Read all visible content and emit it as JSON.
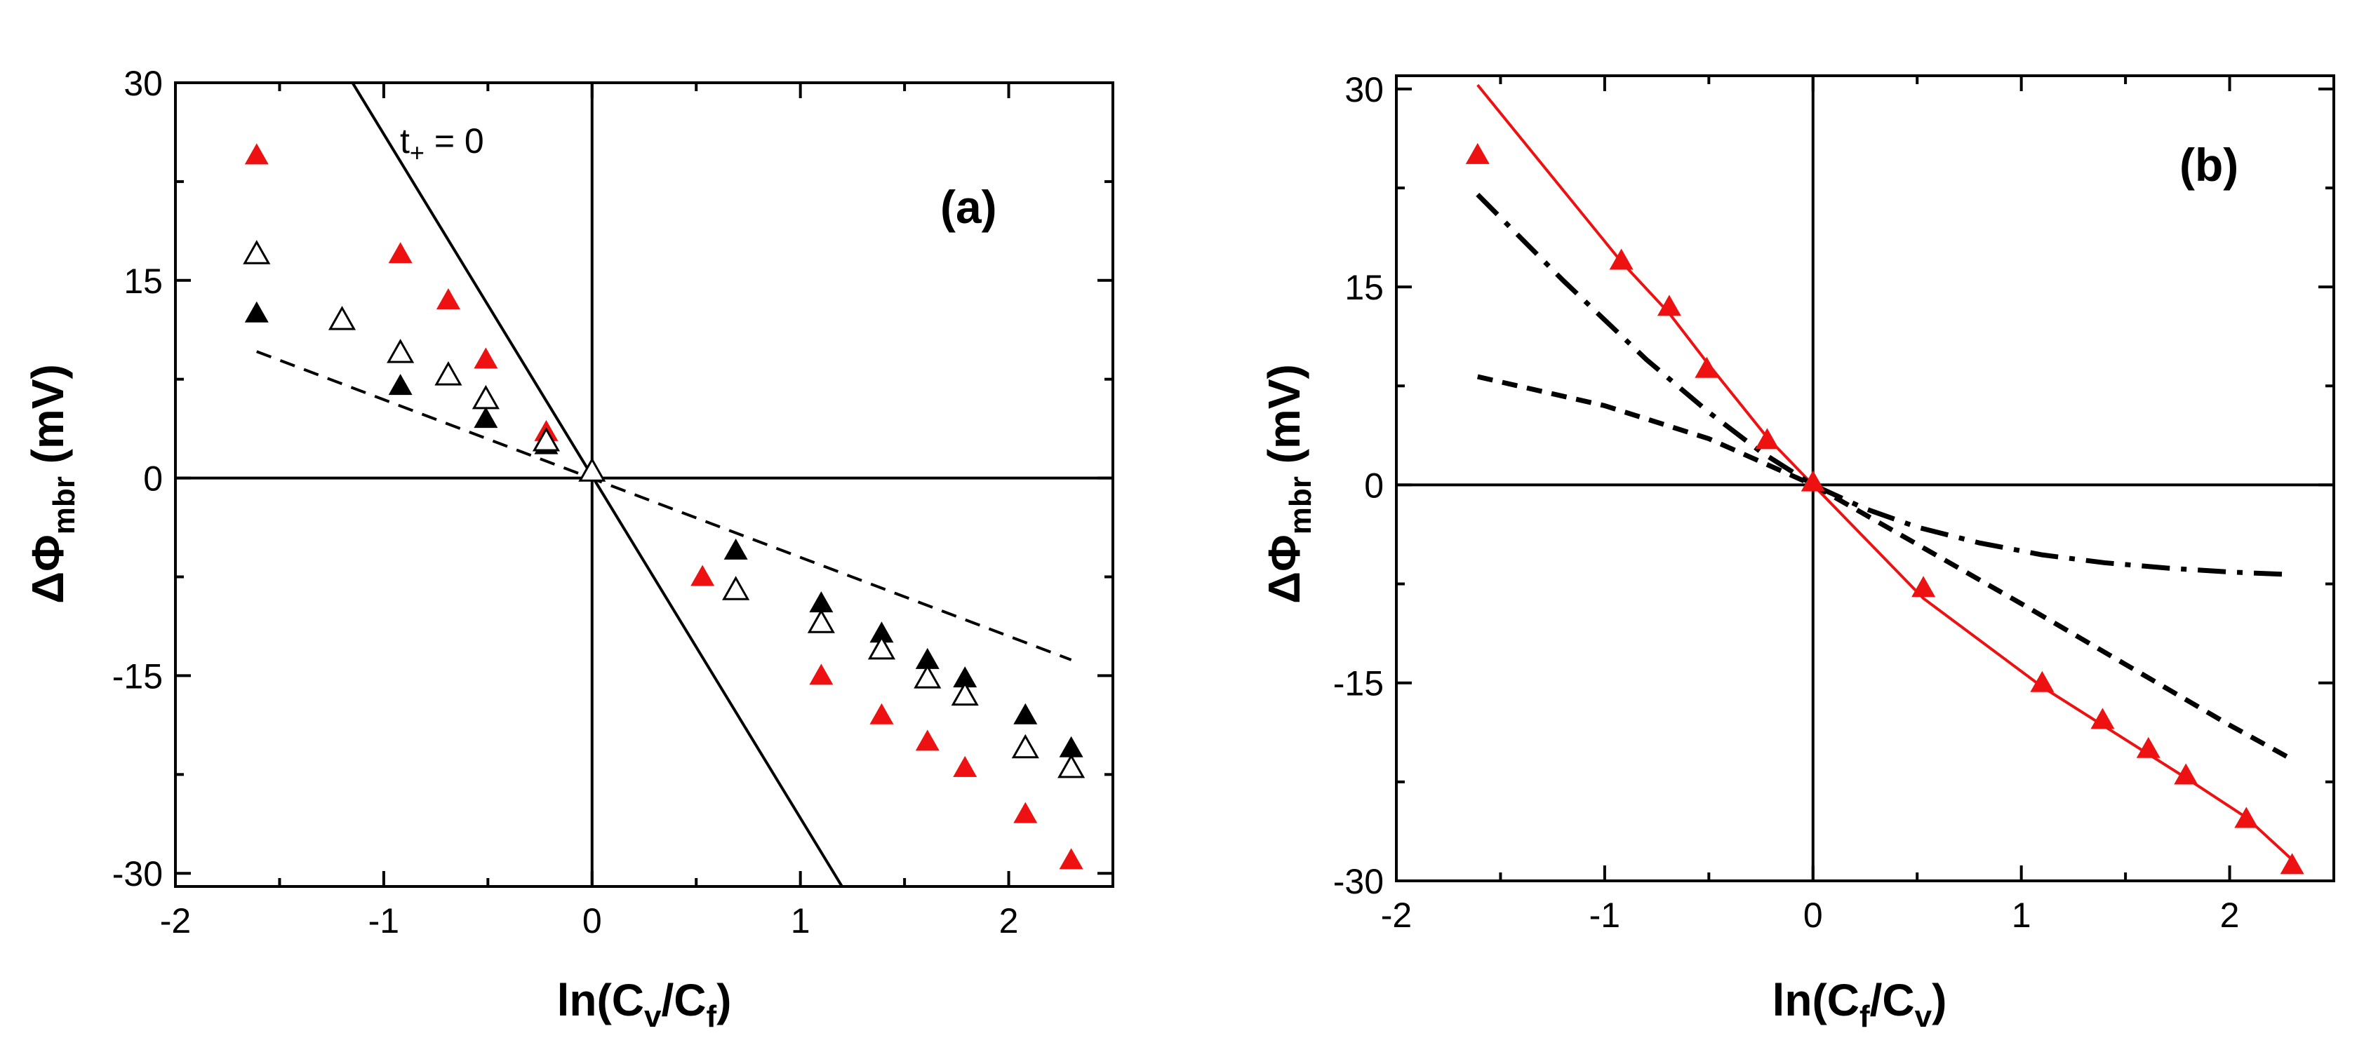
{
  "chart_data": [
    {
      "panel_label": "(a)",
      "type": "scatter",
      "xlabel": {
        "base": "ln(C",
        "sub1": "v",
        "mid": "/C",
        "sub2": "f",
        "end": ")"
      },
      "ylabel": {
        "base": "ΔΦ",
        "sub": "mbr",
        "end": " (mV)"
      },
      "xlim": [
        -2,
        2.5
      ],
      "ylim": [
        -31,
        30
      ],
      "xticks": [
        "-2",
        "-1",
        "0",
        "1",
        "2"
      ],
      "xtick_values": [
        -2,
        -1,
        0,
        1,
        2
      ],
      "yticks": [
        "30",
        "15",
        "0",
        "-15",
        "-30"
      ],
      "ytick_values": [
        30,
        15,
        0,
        -15,
        -30
      ],
      "annotation": {
        "base": "t",
        "sub": "+",
        "end": " = 0"
      },
      "colors": {
        "red": "#ee1111",
        "black": "#000000"
      },
      "reference_lines": [
        {
          "name": "t+ = 0",
          "style": "solid",
          "x": [
            -1.15,
            1.2
          ],
          "y": [
            30,
            -31
          ]
        },
        {
          "name": "dashed",
          "style": "dashed",
          "x": [
            -1.61,
            2.3
          ],
          "y": [
            9.6,
            -13.8
          ]
        }
      ],
      "series": [
        {
          "name": "red filled triangles",
          "marker": "filled",
          "color": "#ee1111",
          "x": [
            -1.61,
            -0.92,
            -0.69,
            -0.51,
            -0.22,
            0,
            0.53,
            1.1,
            1.39,
            1.61,
            1.79,
            2.08,
            2.3
          ],
          "y": [
            24.5,
            17,
            13.5,
            9,
            3.5,
            0.5,
            -7.5,
            -15,
            -18,
            -20,
            -22,
            -25.5,
            -29
          ]
        },
        {
          "name": "black filled triangles",
          "marker": "filled",
          "color": "#000000",
          "x": [
            -1.61,
            -0.92,
            -0.51,
            -0.22,
            0,
            0.69,
            1.1,
            1.39,
            1.61,
            1.79,
            2.08,
            2.3
          ],
          "y": [
            12.5,
            7,
            4.5,
            2.5,
            0.5,
            -5.5,
            -9.5,
            -11.8,
            -13.8,
            -15.2,
            -18,
            -20.5
          ]
        },
        {
          "name": "open triangles",
          "marker": "open",
          "color": "#000000",
          "x": [
            -1.61,
            -1.2,
            -0.92,
            -0.69,
            -0.51,
            -0.22,
            0,
            0.69,
            1.1,
            1.39,
            1.61,
            1.79,
            2.08,
            2.3
          ],
          "y": [
            17,
            12,
            9.5,
            7.8,
            6,
            2.8,
            0.5,
            -8.5,
            -11,
            -13,
            -15.2,
            -16.5,
            -20.5,
            -22
          ]
        }
      ]
    },
    {
      "panel_label": "(b)",
      "type": "scatter",
      "xlabel": {
        "base": "ln(C",
        "sub1": "f",
        "mid": "/C",
        "sub2": "v",
        "end": ")"
      },
      "ylabel": {
        "base": "ΔΦ",
        "sub": "mbr",
        "end": " (mV)"
      },
      "xlim": [
        -2,
        2.5
      ],
      "ylim": [
        -30,
        31
      ],
      "xticks": [
        "-2",
        "-1",
        "0",
        "1",
        "2"
      ],
      "xtick_values": [
        -2,
        -1,
        0,
        1,
        2
      ],
      "yticks": [
        "30",
        "15",
        "0",
        "-15",
        "-30"
      ],
      "ytick_values": [
        30,
        15,
        0,
        -15,
        -30
      ],
      "colors": {
        "red": "#ee1111",
        "black": "#000000"
      },
      "series": [
        {
          "name": "red fit line",
          "style": "solid",
          "color": "#ee1111",
          "x": [
            -1.61,
            -0.92,
            -0.69,
            -0.51,
            -0.22,
            0,
            0.53,
            1.1,
            1.39,
            1.61,
            1.79,
            2.08,
            2.3
          ],
          "y": [
            30.3,
            16.9,
            13,
            9.3,
            3.6,
            0,
            -8.6,
            -15.3,
            -18.2,
            -20.4,
            -22.2,
            -25.2,
            -28.4
          ]
        },
        {
          "name": "red triangles",
          "marker": "filled",
          "color": "#ee1111",
          "x": [
            -1.61,
            -0.92,
            -0.69,
            -0.51,
            -0.22,
            0,
            0.53,
            1.1,
            1.39,
            1.61,
            1.79,
            2.08,
            2.3
          ],
          "y": [
            25,
            17,
            13.5,
            8.8,
            3.4,
            0.2,
            -7.8,
            -15,
            -17.8,
            -20,
            -22,
            -25.3,
            -28.8
          ]
        },
        {
          "name": "dash-dot curve",
          "style": "dashdot",
          "color": "#000000",
          "x": [
            -1.61,
            -1.2,
            -0.8,
            -0.5,
            -0.25,
            0,
            0.25,
            0.5,
            0.8,
            1.1,
            1.4,
            1.7,
            2.0,
            2.3
          ],
          "y": [
            22,
            15.5,
            9.5,
            5.5,
            2.5,
            0,
            -1.8,
            -3.2,
            -4.4,
            -5.3,
            -5.9,
            -6.3,
            -6.6,
            -6.8
          ]
        },
        {
          "name": "dashed curve",
          "style": "dashed",
          "color": "#000000",
          "x": [
            -1.61,
            -1.0,
            -0.5,
            0,
            0.5,
            1.0,
            1.5,
            2.0,
            2.3
          ],
          "y": [
            8.2,
            6,
            3.5,
            0,
            -4.5,
            -9,
            -13.6,
            -18.2,
            -20.8
          ]
        }
      ]
    }
  ]
}
